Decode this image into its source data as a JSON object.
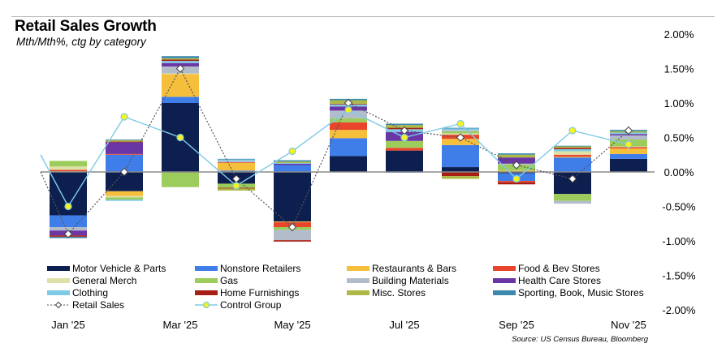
{
  "header": {
    "title": "Retail Sales Growth",
    "subtitle": "Mth/Mth%, ctg by category"
  },
  "source": "Source: US Census Bureau, Bloomberg",
  "chart_data": {
    "type": "bar",
    "stacked": true,
    "title": "Retail Sales Growth",
    "subtitle": "Mth/Mth%, ctg by category",
    "xlabel": "",
    "ylabel": "",
    "ylim": [
      -2.0,
      2.0
    ],
    "yticks": [
      "2.00%",
      "1.50%",
      "1.00%",
      "0.50%",
      "0.00%",
      "-0.50%",
      "-1.00%",
      "-1.50%",
      "-2.00%"
    ],
    "ytick_values": [
      2.0,
      1.5,
      1.0,
      0.5,
      0.0,
      -0.5,
      -1.0,
      -1.5,
      -2.0
    ],
    "categories": [
      "Jan '25",
      "Feb '25",
      "Mar '25",
      "Apr '25",
      "May '25",
      "Jun '25",
      "Jul '25",
      "Aug '25",
      "Sep '25",
      "Oct '25",
      "Nov '25"
    ],
    "xtick_labels": [
      "Jan '25",
      "",
      "Mar '25",
      "",
      "May '25",
      "",
      "Jul '25",
      "",
      "Sep '25",
      "",
      "Nov '25"
    ],
    "legend_position": "bottom",
    "series": [
      {
        "name": "Motor Vehicle & Parts",
        "color": "#0d1f4f",
        "values": [
          -0.63,
          -0.28,
          1.0,
          -0.17,
          -0.72,
          0.23,
          0.31,
          0.07,
          -0.02,
          -0.32,
          0.19
        ]
      },
      {
        "name": "Nonstore Retailers",
        "color": "#3f7ee8",
        "values": [
          -0.17,
          0.25,
          0.09,
          0.02,
          0.1,
          0.26,
          -0.01,
          0.32,
          -0.11,
          0.21,
          0.07
        ]
      },
      {
        "name": "Restaurants & Bars",
        "color": "#f5bf3c",
        "values": [
          0.01,
          -0.07,
          0.33,
          0.11,
          -0.01,
          0.12,
          0.0,
          0.09,
          0.02,
          0.01,
          0.08
        ]
      },
      {
        "name": "Food & Bev Stores",
        "color": "#e8452c",
        "values": [
          0.02,
          0.01,
          0.0,
          0.01,
          -0.07,
          0.11,
          0.04,
          0.06,
          -0.02,
          0.03,
          0.02
        ]
      },
      {
        "name": "General Merch",
        "color": "#dfe0a8",
        "values": [
          0.05,
          -0.02,
          0.01,
          0.0,
          0.0,
          0.0,
          0.0,
          0.02,
          0.0,
          0.05,
          0.01
        ]
      },
      {
        "name": "Gas",
        "color": "#9ccc5c",
        "values": [
          0.08,
          -0.03,
          -0.22,
          -0.06,
          -0.04,
          0.06,
          0.1,
          0.03,
          0.09,
          -0.1,
          0.1
        ]
      },
      {
        "name": "Building Materials",
        "color": "#b2bccb",
        "values": [
          -0.05,
          0.0,
          0.1,
          0.02,
          -0.15,
          0.11,
          0.0,
          0.02,
          0.01,
          -0.04,
          0.06
        ]
      },
      {
        "name": "Health Care Stores",
        "color": "#6a36a6",
        "values": [
          -0.07,
          0.17,
          0.05,
          0.0,
          0.02,
          0.06,
          0.13,
          0.0,
          0.09,
          0.0,
          0.02
        ]
      },
      {
        "name": "Clothing",
        "color": "#7fcbe6",
        "values": [
          0.0,
          -0.02,
          0.03,
          0.02,
          0.01,
          0.03,
          0.04,
          0.02,
          0.0,
          0.03,
          0.02
        ]
      },
      {
        "name": "Home Furnishings",
        "color": "#a61e14",
        "values": [
          -0.02,
          0.01,
          0.02,
          -0.01,
          -0.02,
          0.01,
          0.02,
          -0.06,
          -0.03,
          0.02,
          0.0
        ]
      },
      {
        "name": "Misc. Stores",
        "color": "#adb944",
        "values": [
          0.0,
          0.02,
          0.02,
          -0.03,
          0.02,
          0.05,
          0.04,
          -0.04,
          0.04,
          0.02,
          0.02
        ]
      },
      {
        "name": "Sporting, Book, Music Stores",
        "color": "#3d89ad",
        "values": [
          -0.02,
          0.01,
          0.03,
          0.01,
          0.02,
          0.02,
          0.02,
          0.01,
          0.02,
          0.01,
          0.02
        ]
      }
    ],
    "lines": [
      {
        "name": "Retail Sales",
        "style": "dotted",
        "color": "#555555",
        "marker": "diamond",
        "values": [
          -0.9,
          0.0,
          1.5,
          -0.1,
          -0.8,
          1.0,
          0.6,
          0.5,
          0.1,
          -0.1,
          0.6
        ],
        "start_value": 0.0
      },
      {
        "name": "Control Group",
        "style": "solid",
        "color": "#7fcbe6",
        "marker": "circle-yellow",
        "values": [
          -0.5,
          0.8,
          0.5,
          -0.2,
          0.3,
          0.9,
          0.5,
          0.7,
          -0.1,
          0.6,
          0.4
        ],
        "start_value": 0.25
      }
    ]
  },
  "legend": {
    "items": [
      {
        "label": "Motor Vehicle & Parts",
        "color": "#0d1f4f",
        "kind": "bar"
      },
      {
        "label": "Nonstore Retailers",
        "color": "#3f7ee8",
        "kind": "bar"
      },
      {
        "label": "Restaurants & Bars",
        "color": "#f5bf3c",
        "kind": "bar"
      },
      {
        "label": "Food & Bev Stores",
        "color": "#e8452c",
        "kind": "bar"
      },
      {
        "label": "General Merch",
        "color": "#dfe0a8",
        "kind": "bar"
      },
      {
        "label": "Gas",
        "color": "#9ccc5c",
        "kind": "bar"
      },
      {
        "label": "Building Materials",
        "color": "#b2bccb",
        "kind": "bar"
      },
      {
        "label": "Health Care Stores",
        "color": "#6a36a6",
        "kind": "bar"
      },
      {
        "label": "Clothing",
        "color": "#7fcbe6",
        "kind": "bar"
      },
      {
        "label": "Home Furnishings",
        "color": "#a61e14",
        "kind": "bar"
      },
      {
        "label": "Misc. Stores",
        "color": "#adb944",
        "kind": "bar"
      },
      {
        "label": "Sporting, Book, Music Stores",
        "color": "#3d89ad",
        "kind": "bar"
      },
      {
        "label": "Retail Sales",
        "color": "#555555",
        "kind": "dotted-diamond"
      },
      {
        "label": "Control Group",
        "color": "#7fcbe6",
        "kind": "solid-circle"
      }
    ]
  }
}
